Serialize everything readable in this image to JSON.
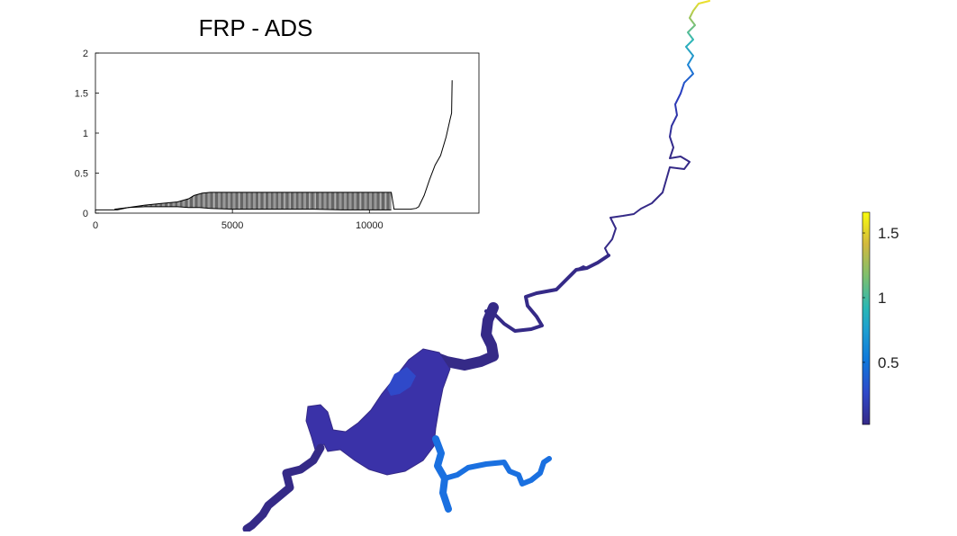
{
  "chart_data": [
    {
      "type": "line",
      "title": "FRP - ADS",
      "xlabel": "",
      "ylabel": "",
      "xlim": [
        0,
        14000
      ],
      "ylim": [
        0,
        2
      ],
      "xticks": [
        0,
        5000,
        10000
      ],
      "xtick_labels": [
        "0",
        "5000",
        "10000"
      ],
      "yticks": [
        0,
        0.5,
        1,
        1.5,
        2
      ],
      "ytick_labels": [
        "0",
        "0.5",
        "1",
        "1.5",
        "2"
      ],
      "grid": false,
      "series": [
        {
          "color": "#000000",
          "x": [
            0,
            800,
            1200,
            1800,
            2400,
            3000,
            3400,
            3600,
            3900,
            4200,
            5000,
            6000,
            7000,
            8000,
            9000,
            10000,
            10800,
            10900,
            11200,
            11500,
            11700,
            11800,
            12000,
            12200,
            12400,
            12600,
            12800,
            12950,
            13000,
            13020
          ],
          "y": [
            0.04,
            0.04,
            0.07,
            0.1,
            0.12,
            0.14,
            0.18,
            0.22,
            0.25,
            0.26,
            0.26,
            0.26,
            0.26,
            0.26,
            0.26,
            0.26,
            0.26,
            0.05,
            0.05,
            0.05,
            0.06,
            0.08,
            0.22,
            0.42,
            0.6,
            0.72,
            0.95,
            1.18,
            1.25,
            1.66
          ]
        },
        {
          "color": "#000000",
          "x": [
            700,
            1200,
            1800,
            2400,
            3000,
            3400,
            3800,
            4200,
            5000,
            6000,
            7000,
            8000,
            9000,
            10000,
            10800
          ],
          "y": [
            0.05,
            0.07,
            0.08,
            0.08,
            0.08,
            0.07,
            0.07,
            0.06,
            0.05,
            0.05,
            0.05,
            0.05,
            0.04,
            0.04,
            0.04
          ]
        }
      ]
    },
    {
      "type": "heatmap",
      "colormap": "parula",
      "colorbar": {
        "range": [
          0.02,
          1.66
        ],
        "ticks": [
          0.5,
          1,
          1.5
        ],
        "tick_labels": [
          "0.5",
          "1",
          "1.5"
        ],
        "position": "right"
      },
      "colors": {
        "low": "#352a87",
        "mid_blue": "#0f77db",
        "cyan": "#1fb1cf",
        "green": "#7ebf6e",
        "high": "#f9fb0e"
      }
    }
  ]
}
